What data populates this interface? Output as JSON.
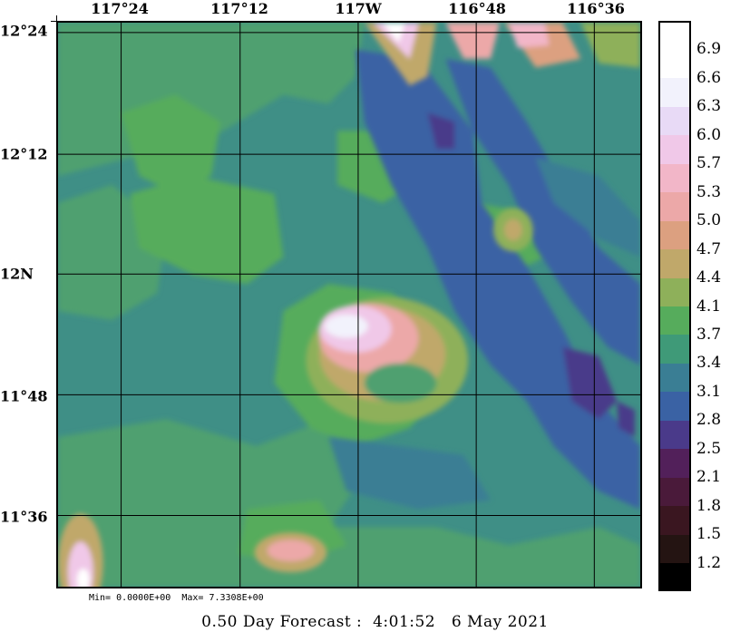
{
  "map": {
    "lon_labels": [
      "117°24",
      "117°12",
      "117W",
      "116°48",
      "116°36"
    ],
    "lat_labels": [
      "12°24",
      "12°12",
      "12N",
      "11°48",
      "11°36"
    ],
    "min_max": "Min= 0.0000E+00  Max= 7.3308E+00",
    "footer": "0.50 Day Forecast :  4:01:52   6 May 2021"
  },
  "legend": {
    "levels": [
      "1.2",
      "1.5",
      "1.8",
      "2.1",
      "2.5",
      "2.8",
      "3.1",
      "3.4",
      "3.7",
      "4.1",
      "4.4",
      "4.7",
      "5.0",
      "5.3",
      "5.7",
      "6.0",
      "6.3",
      "6.6",
      "6.9"
    ],
    "colors": [
      "#000000",
      "#241412",
      "#3a1620",
      "#4a1a3a",
      "#52205a",
      "#4a3a8a",
      "#3a62a4",
      "#3a7e94",
      "#3f9a78",
      "#56ac5c",
      "#8eb05a",
      "#c0a86a",
      "#dca080",
      "#eca8a8",
      "#f2b6c8",
      "#f0c8e8",
      "#e8daf6",
      "#f2f2fc",
      "#ffffff"
    ]
  }
}
